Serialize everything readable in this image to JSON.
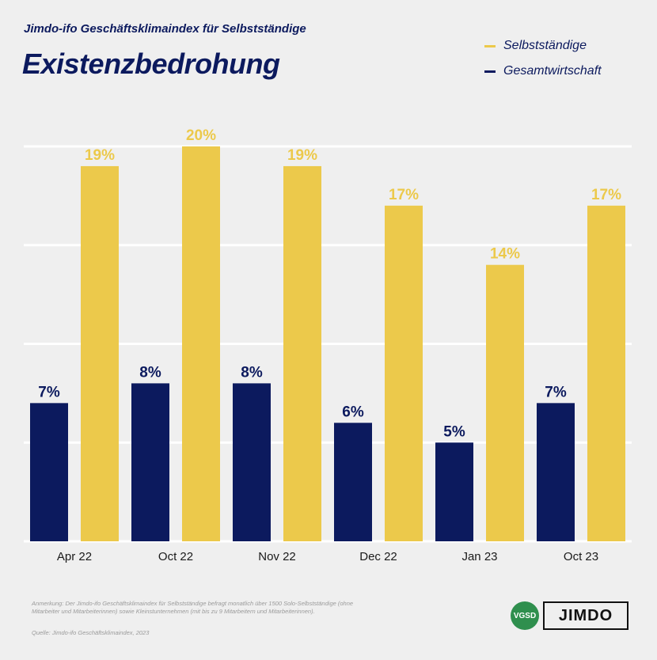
{
  "header": {
    "subtitle": "Jimdo-ifo Geschäftsklimaindex für Selbstständige",
    "title": "Existenzbedrohung"
  },
  "legend": [
    {
      "label": "Selbstständige",
      "color": "#ecc94b"
    },
    {
      "label": "Gesamtwirtschaft",
      "color": "#0c1a5e"
    }
  ],
  "chart_data": {
    "type": "bar",
    "title": "Existenzbedrohung",
    "subtitle": "Jimdo-ifo Geschäftsklimaindex für Selbstständige",
    "categories": [
      "Apr 22",
      "Oct 22",
      "Nov 22",
      "Dec 22",
      "Jan 23",
      "Oct 23"
    ],
    "series": [
      {
        "name": "Gesamtwirtschaft",
        "color": "#0c1a5e",
        "values": [
          7,
          8,
          8,
          6,
          5,
          7
        ],
        "labels": [
          "7%",
          "8%",
          "8%",
          "6%",
          "5%",
          "7%"
        ]
      },
      {
        "name": "Selbstständige",
        "color": "#ecc94b",
        "values": [
          19,
          20,
          19,
          17,
          14,
          17
        ],
        "labels": [
          "19%",
          "20%",
          "19%",
          "17%",
          "14%",
          "17%"
        ]
      }
    ],
    "ylim": [
      0,
      20
    ],
    "grid": true,
    "legend_position": "top-right"
  },
  "footer": {
    "note": "Anmerkung: Der Jimdo-ifo Geschäftsklimaindex für Selbstständige befragt monatlich über 1500 Solo-Selbstständige (ohne Mitarbeiter und Mitarbeiterinnen) sowie Kleinstunternehmen (mit bis zu 9 Mitarbeitern und Mitarbeiterinnen).",
    "source": "Quelle: Jimdo-ifo Geschäftsklimaindex, 2023",
    "vgsd_logo": "VGSD",
    "jimdo_logo": "JIMDO"
  }
}
